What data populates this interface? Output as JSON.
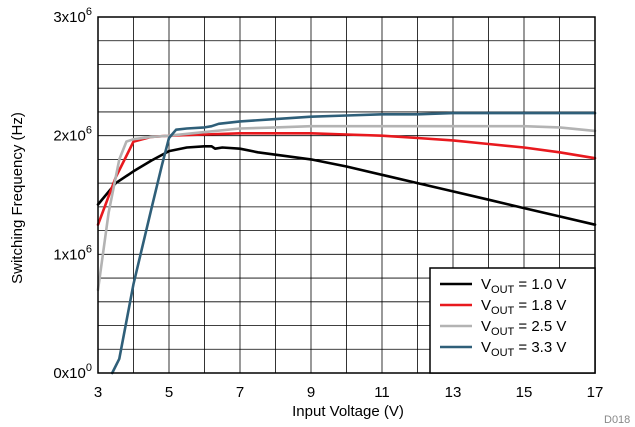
{
  "chart_data": {
    "type": "line",
    "xlabel": "Input Voltage (V)",
    "ylabel": "Switching Frequency (Hz)",
    "xlim": [
      3,
      17
    ],
    "ylim": [
      0,
      3000000
    ],
    "x_ticks": [
      "3",
      "5",
      "7",
      "9",
      "11",
      "13",
      "15",
      "17"
    ],
    "y_tick_labels": [
      {
        "base": "0x10",
        "exp": "0",
        "value": 0
      },
      {
        "base": "1x10",
        "exp": "6",
        "value": 1000000
      },
      {
        "base": "2x10",
        "exp": "6",
        "value": 2000000
      },
      {
        "base": "3x10",
        "exp": "6",
        "value": 3000000
      }
    ],
    "grid": true,
    "legend_position": "bottom-right",
    "code": "D018",
    "series": [
      {
        "name": "V_OUT = 1.0 V",
        "label_main": "V",
        "label_sub": "OUT",
        "label_rest": " = 1.0 V",
        "color": "#000000",
        "x": [
          3.0,
          3.5,
          4.0,
          4.5,
          5.0,
          5.5,
          6.0,
          6.2,
          6.3,
          6.5,
          7.0,
          7.5,
          8.0,
          9.0,
          10.0,
          11.0,
          12.0,
          13.0,
          14.0,
          15.0,
          16.0,
          17.0
        ],
        "y": [
          1420000,
          1600000,
          1700000,
          1790000,
          1870000,
          1900000,
          1910000,
          1910000,
          1890000,
          1900000,
          1890000,
          1860000,
          1840000,
          1800000,
          1740000,
          1670000,
          1600000,
          1530000,
          1460000,
          1390000,
          1320000,
          1250000
        ]
      },
      {
        "name": "V_OUT = 1.8 V",
        "label_main": "V",
        "label_sub": "OUT",
        "label_rest": " = 1.8 V",
        "color": "#e8191e",
        "x": [
          3.0,
          3.5,
          4.0,
          4.5,
          5.0,
          6.0,
          7.0,
          8.0,
          9.0,
          10.0,
          11.0,
          12.0,
          13.0,
          14.0,
          15.0,
          16.0,
          17.0
        ],
        "y": [
          1250000,
          1650000,
          1950000,
          1990000,
          2000000,
          2010000,
          2020000,
          2020000,
          2020000,
          2010000,
          2000000,
          1980000,
          1960000,
          1930000,
          1900000,
          1860000,
          1810000
        ]
      },
      {
        "name": "V_OUT = 2.5 V",
        "label_main": "V",
        "label_sub": "OUT",
        "label_rest": " = 2.5 V",
        "color": "#b3b3b3",
        "x": [
          3.0,
          3.3,
          3.6,
          3.8,
          4.0,
          4.5,
          5.0,
          6.0,
          7.0,
          8.0,
          9.0,
          10.0,
          11.0,
          12.0,
          13.0,
          14.0,
          15.0,
          16.0,
          17.0
        ],
        "y": [
          700000,
          1350000,
          1800000,
          1950000,
          1970000,
          1990000,
          2000000,
          2030000,
          2060000,
          2070000,
          2080000,
          2080000,
          2080000,
          2080000,
          2080000,
          2080000,
          2080000,
          2070000,
          2040000
        ]
      },
      {
        "name": "V_OUT = 3.3 V",
        "label_main": "V",
        "label_sub": "OUT",
        "label_rest": " = 3.3 V",
        "color": "#2f5f79",
        "x": [
          3.4,
          3.6,
          4.0,
          4.5,
          4.8,
          5.0,
          5.2,
          5.5,
          6.0,
          6.2,
          6.4,
          7.0,
          8.0,
          9.0,
          10.0,
          11.0,
          12.0,
          13.0,
          14.0,
          15.0,
          16.0,
          17.0
        ],
        "y": [
          0,
          120000,
          750000,
          1380000,
          1750000,
          1980000,
          2050000,
          2060000,
          2070000,
          2080000,
          2100000,
          2120000,
          2140000,
          2160000,
          2170000,
          2180000,
          2180000,
          2190000,
          2190000,
          2190000,
          2190000,
          2190000
        ]
      }
    ]
  }
}
